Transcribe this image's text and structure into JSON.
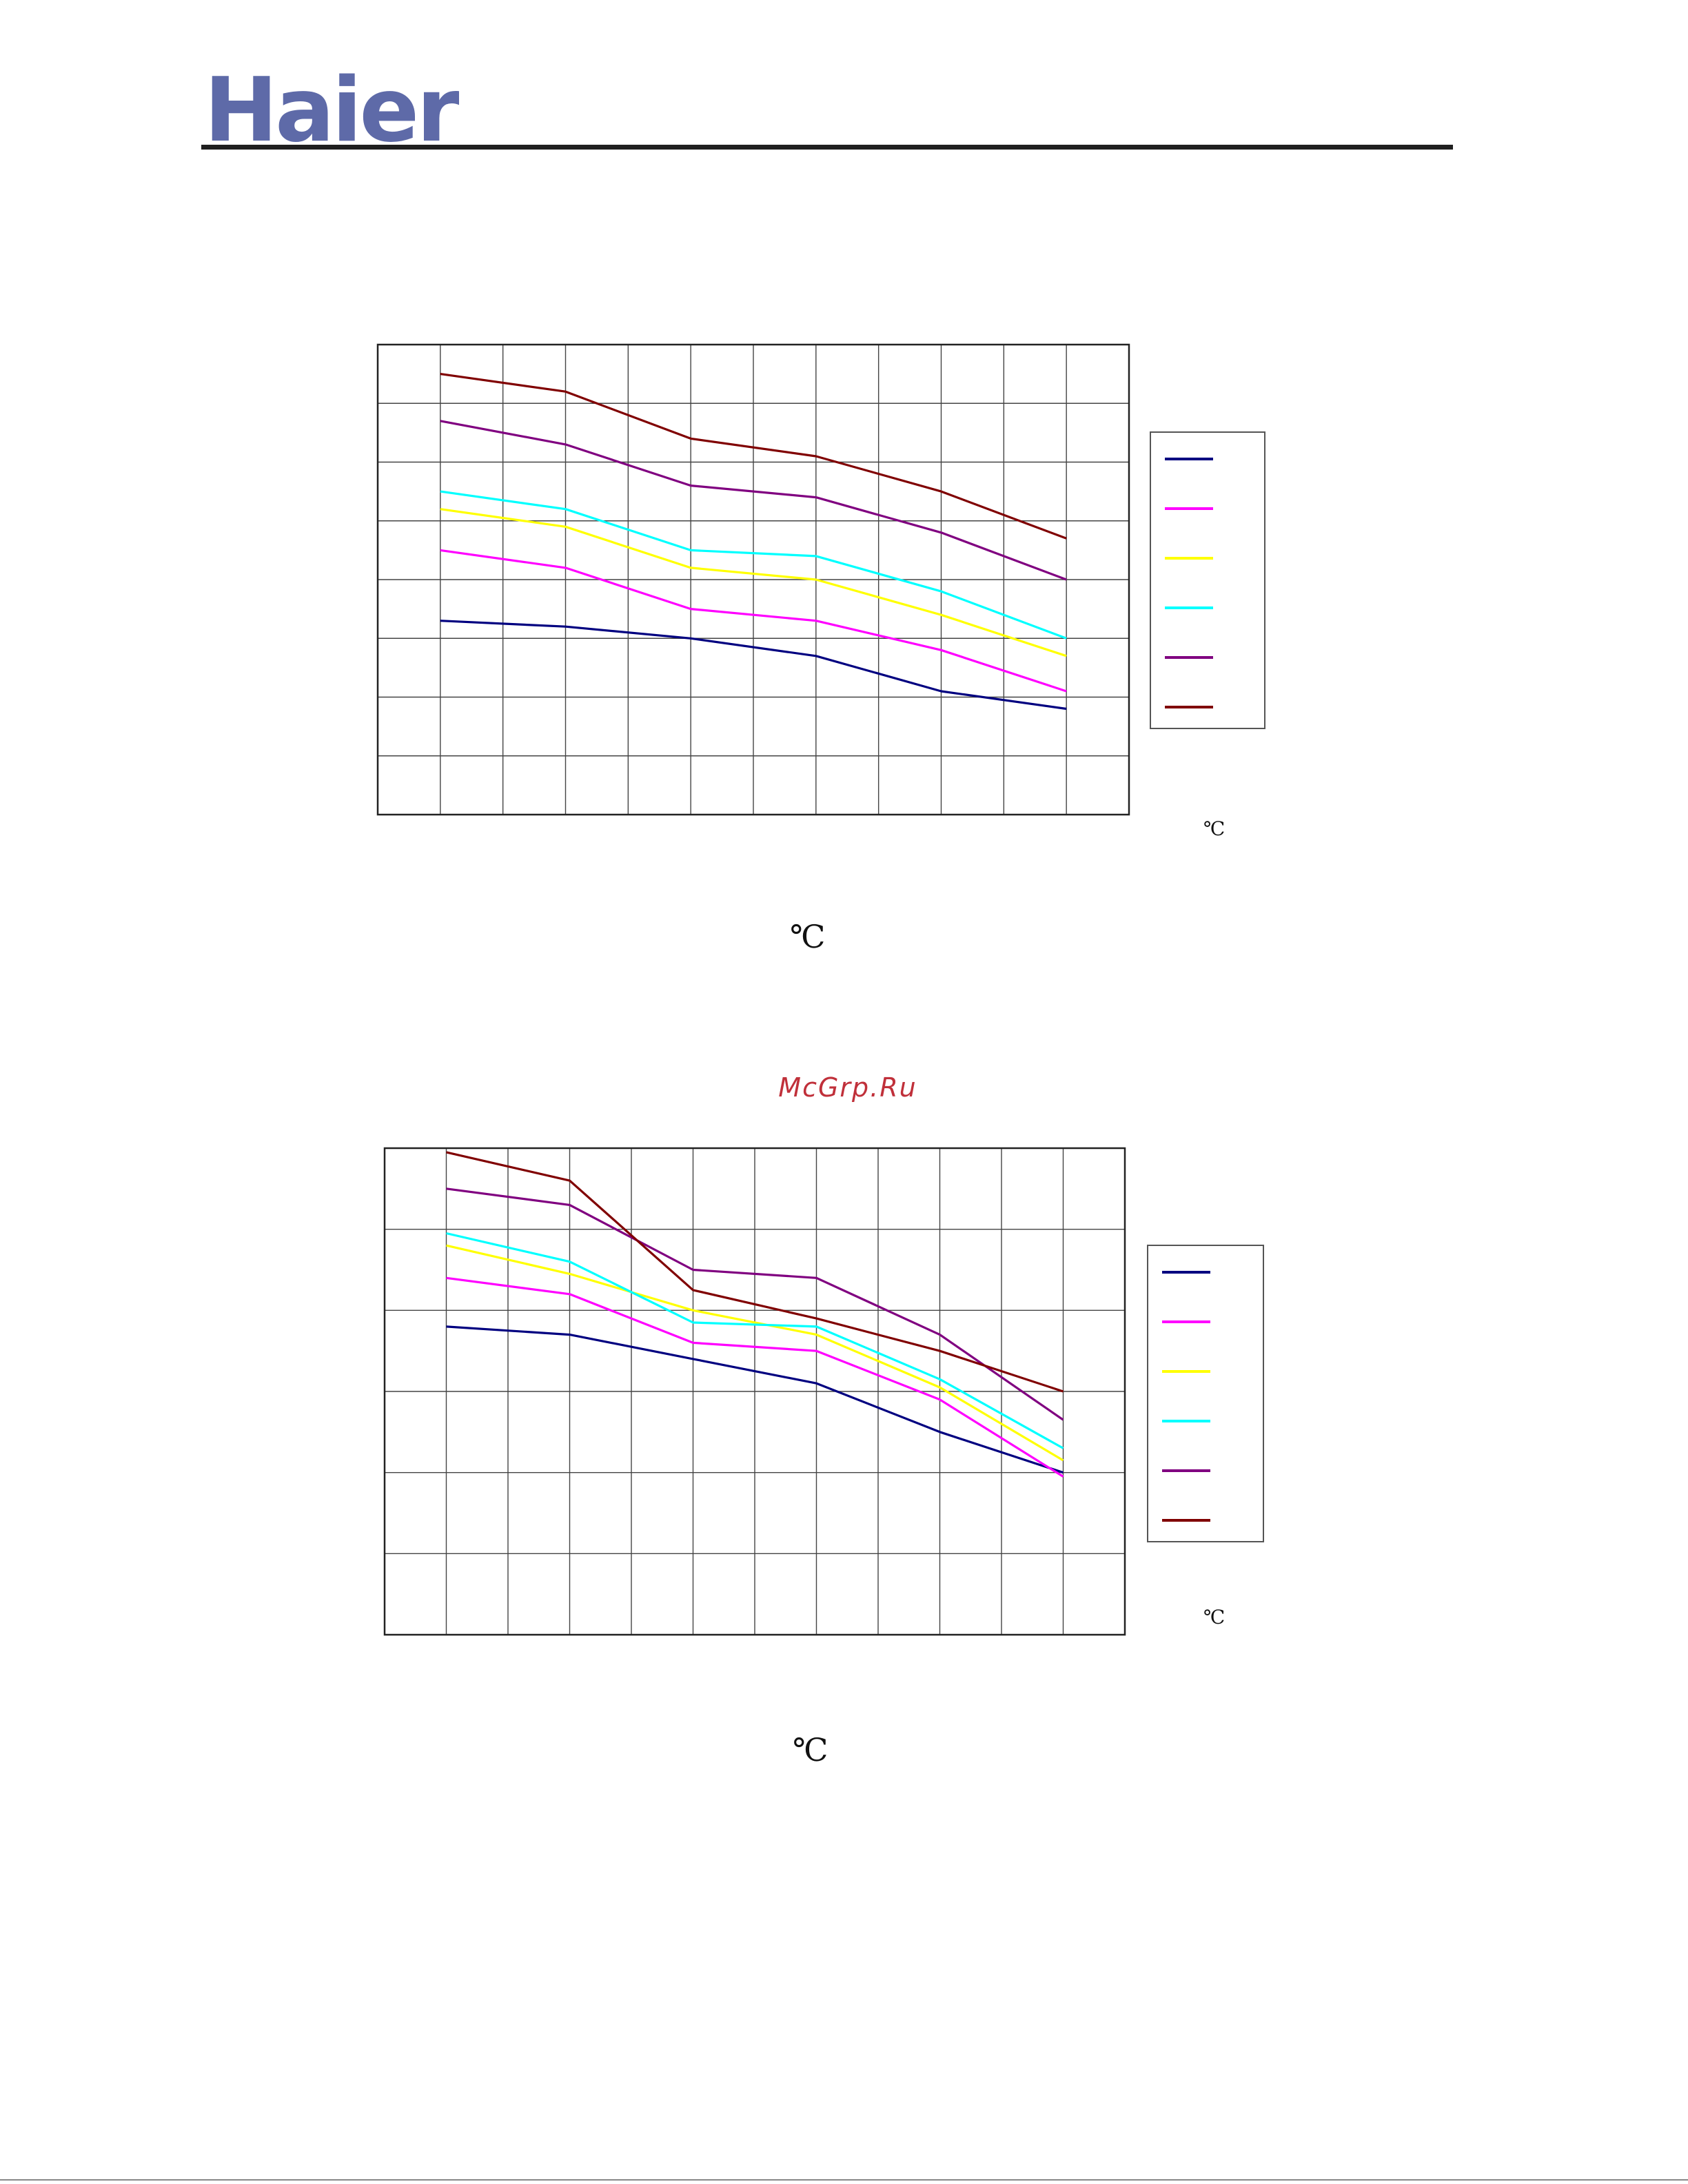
{
  "header": {
    "logo_text": "Haier",
    "logo_color": "#5e6aa8"
  },
  "watermark": "McGrp.Ru",
  "charts": [
    {
      "unit_small": "℃",
      "unit_large": "℃"
    },
    {
      "unit_small": "℃",
      "unit_large": "℃"
    }
  ],
  "chart_data": [
    {
      "type": "line",
      "grid": true,
      "x_gridlines": 12,
      "y_gridlines": 8,
      "xlim": [
        0,
        12
      ],
      "ylim": [
        0,
        8
      ],
      "x": [
        1,
        2,
        3,
        4,
        5,
        6,
        7,
        8,
        9,
        10,
        11
      ],
      "series": [
        {
          "color": "#000080",
          "values": [
            3.3,
            null,
            3.2,
            null,
            3.0,
            null,
            2.7,
            null,
            2.1,
            null,
            1.8
          ]
        },
        {
          "color": "#ff00ff",
          "values": [
            4.5,
            null,
            4.2,
            null,
            3.5,
            null,
            3.3,
            null,
            2.8,
            null,
            2.1
          ]
        },
        {
          "color": "#ffff00",
          "values": [
            5.2,
            null,
            4.9,
            null,
            4.2,
            null,
            4.0,
            null,
            3.4,
            null,
            2.7
          ]
        },
        {
          "color": "#00ffff",
          "values": [
            5.5,
            null,
            5.2,
            null,
            4.5,
            null,
            4.4,
            null,
            3.8,
            null,
            3.0
          ]
        },
        {
          "color": "#800080",
          "values": [
            6.7,
            null,
            6.3,
            null,
            5.6,
            null,
            5.4,
            null,
            4.8,
            null,
            4.0
          ]
        },
        {
          "color": "#800000",
          "values": [
            7.5,
            null,
            7.2,
            null,
            6.4,
            null,
            6.1,
            null,
            5.5,
            null,
            4.7
          ]
        }
      ]
    },
    {
      "type": "line",
      "grid": true,
      "x_gridlines": 12,
      "y_gridlines": 6,
      "xlim": [
        0,
        12
      ],
      "ylim": [
        0,
        6
      ],
      "x": [
        1,
        2,
        3,
        4,
        5,
        6,
        7,
        8,
        9,
        10,
        11
      ],
      "series": [
        {
          "color": "#000080",
          "values": [
            3.8,
            null,
            3.7,
            null,
            3.4,
            null,
            3.1,
            null,
            2.5,
            null,
            2.0
          ]
        },
        {
          "color": "#ff00ff",
          "values": [
            4.4,
            null,
            4.2,
            null,
            3.6,
            null,
            3.5,
            null,
            2.9,
            null,
            1.95
          ]
        },
        {
          "color": "#ffff00",
          "values": [
            4.8,
            null,
            4.45,
            null,
            4.0,
            null,
            3.7,
            null,
            3.05,
            null,
            2.15
          ]
        },
        {
          "color": "#00ffff",
          "values": [
            4.95,
            null,
            4.6,
            null,
            3.85,
            null,
            3.8,
            null,
            3.15,
            null,
            2.3
          ]
        },
        {
          "color": "#800080",
          "values": [
            5.5,
            null,
            5.3,
            null,
            4.5,
            null,
            4.4,
            null,
            3.7,
            null,
            2.65
          ]
        },
        {
          "color": "#800000",
          "values": [
            5.95,
            null,
            5.6,
            null,
            4.25,
            null,
            3.9,
            null,
            3.5,
            null,
            3.0
          ]
        }
      ]
    }
  ]
}
